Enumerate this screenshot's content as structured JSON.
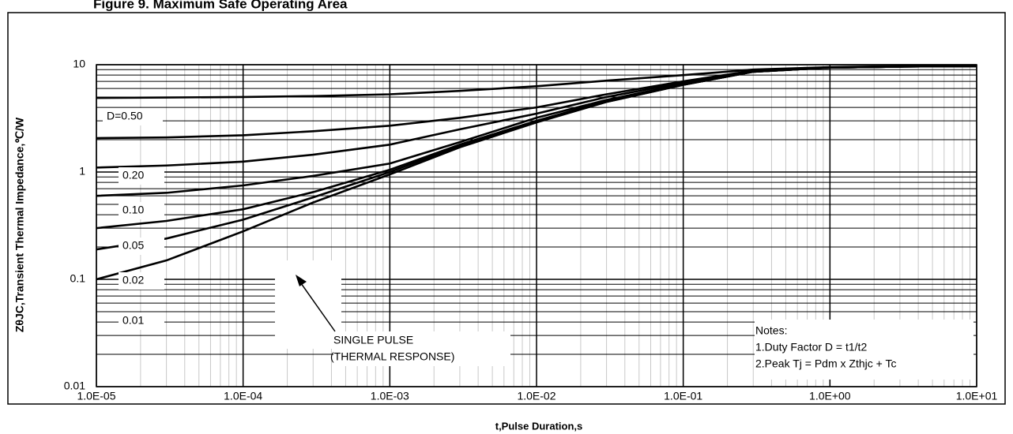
{
  "chart_data": {
    "type": "line",
    "title": "Figure 9. Maximum Safe Operating Area",
    "xlabel": "t,Pulse Duration,s",
    "ylabel": "ZθJC,Transient Thermal Impedance,℃/W",
    "xscale": "log",
    "yscale": "log",
    "grid": true,
    "minor_grid": true,
    "color": "#000000",
    "xlim": [
      1e-05,
      10
    ],
    "ylim": [
      0.01,
      10
    ],
    "xticks": [
      {
        "value": 1e-05,
        "label": "1.0E-05"
      },
      {
        "value": 0.0001,
        "label": "1.0E-04"
      },
      {
        "value": 0.001,
        "label": "1.0E-03"
      },
      {
        "value": 0.01,
        "label": "1.0E-02"
      },
      {
        "value": 0.1,
        "label": "1.0E-01"
      },
      {
        "value": 1,
        "label": "1.0E+00"
      },
      {
        "value": 10,
        "label": "1.0E+01"
      }
    ],
    "yticks": [
      0.01,
      0.1,
      1,
      10
    ],
    "x": [
      1e-05,
      3e-05,
      0.0001,
      0.0003,
      0.001,
      0.003,
      0.01,
      0.03,
      0.1,
      0.3,
      1,
      3,
      10
    ],
    "series": [
      {
        "name": "D=0.50",
        "values": [
          4.9,
          4.95,
          5.0,
          5.1,
          5.3,
          5.7,
          6.3,
          7.1,
          8.0,
          9.0,
          9.5,
          9.7,
          9.7
        ]
      },
      {
        "name": "0.20",
        "values": [
          2.07,
          2.1,
          2.2,
          2.4,
          2.7,
          3.2,
          4.0,
          5.3,
          7.0,
          8.8,
          9.4,
          9.6,
          9.7
        ]
      },
      {
        "name": "0.10",
        "values": [
          1.1,
          1.15,
          1.25,
          1.45,
          1.8,
          2.5,
          3.5,
          5.0,
          6.8,
          8.7,
          9.4,
          9.6,
          9.7
        ]
      },
      {
        "name": "0.05",
        "values": [
          0.6,
          0.64,
          0.75,
          0.92,
          1.2,
          1.9,
          3.2,
          4.7,
          6.6,
          8.6,
          9.4,
          9.6,
          9.7
        ]
      },
      {
        "name": "0.02",
        "values": [
          0.3,
          0.35,
          0.45,
          0.65,
          1.05,
          1.8,
          3.0,
          4.6,
          6.5,
          8.6,
          9.4,
          9.6,
          9.7
        ]
      },
      {
        "name": "0.01",
        "values": [
          0.19,
          0.24,
          0.36,
          0.58,
          1.0,
          1.75,
          3.0,
          4.5,
          6.5,
          8.6,
          9.4,
          9.6,
          9.7
        ]
      },
      {
        "name": "SINGLE PULSE",
        "values": [
          0.1,
          0.15,
          0.28,
          0.52,
          0.95,
          1.7,
          2.9,
          4.5,
          6.5,
          8.6,
          9.4,
          9.6,
          9.7
        ]
      }
    ],
    "annotation": "(THERMAL RESPONSE)",
    "notes": [
      "Notes:",
      "1.Duty Factor D = t1/t2",
      "2.Peak Tj = Pdm x Zthjc + Tc"
    ]
  }
}
